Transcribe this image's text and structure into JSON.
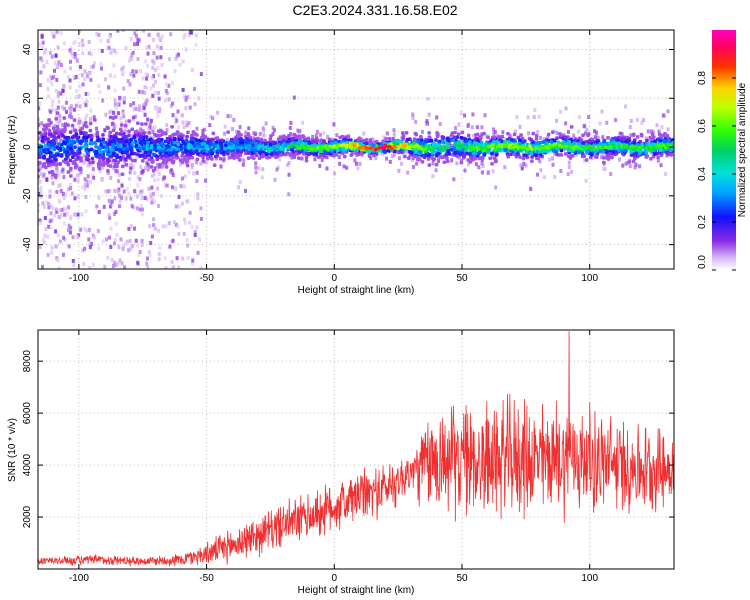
{
  "title": "C2E3.2024.331.16.58.E02",
  "chart_data": [
    {
      "type": "heatmap",
      "xlabel": "Height of straight line (km)",
      "ylabel": "Frequency (Hz)",
      "xlim": [
        -116,
        133
      ],
      "ylim": [
        -50,
        48
      ],
      "x_ticks": [
        -100,
        -50,
        0,
        50,
        100
      ],
      "y_ticks": [
        -40,
        -20,
        0,
        20,
        40
      ],
      "colorbar": {
        "label": "Normalized spectral amplitude",
        "range": [
          0,
          1
        ],
        "ticks": [
          0.0,
          0.2,
          0.4,
          0.6,
          0.8
        ],
        "tick_labels": [
          "0.0",
          "0.2",
          "0.4",
          "0.6",
          "0.8"
        ]
      },
      "band": {
        "center_hz": 0,
        "description_points": [
          {
            "x": -110,
            "halfwidth_hz": 7,
            "peak": 0.35
          },
          {
            "x": -80,
            "halfwidth_hz": 6,
            "peak": 0.35
          },
          {
            "x": -55,
            "halfwidth_hz": 4,
            "peak": 0.4
          },
          {
            "x": -30,
            "halfwidth_hz": 3,
            "peak": 0.45
          },
          {
            "x": 0,
            "halfwidth_hz": 2.5,
            "peak": 0.7
          },
          {
            "x": 20,
            "halfwidth_hz": 1.5,
            "peak": 1.0
          },
          {
            "x": 40,
            "halfwidth_hz": 4,
            "peak": 0.5
          },
          {
            "x": 70,
            "halfwidth_hz": 3,
            "peak": 0.7
          },
          {
            "x": 100,
            "halfwidth_hz": 3,
            "peak": 0.6
          },
          {
            "x": 130,
            "halfwidth_hz": 3,
            "peak": 0.6
          }
        ],
        "scatter_region_x": [
          -116,
          -52
        ]
      }
    },
    {
      "type": "line",
      "xlabel": "Height of straight line (km)",
      "ylabel": "SNR (10 * v/v)",
      "xlim": [
        -116,
        133
      ],
      "ylim": [
        0,
        9200
      ],
      "x_ticks": [
        -100,
        -50,
        0,
        50,
        100
      ],
      "y_ticks": [
        2000,
        4000,
        6000,
        8000
      ],
      "series": [
        {
          "color": "#f03030",
          "envelope": {
            "x": [
              -116,
              -90,
              -75,
              -60,
              -50,
              -40,
              -30,
              -20,
              -10,
              0,
              10,
              20,
              30,
              34,
              40,
              50,
              60,
              70,
              80,
              90,
              100,
              110,
              120,
              133
            ],
            "mean": [
              300,
              350,
              300,
              350,
              600,
              900,
              1300,
              1700,
              2000,
              2400,
              2800,
              3100,
              3700,
              3900,
              4200,
              4200,
              4200,
              4300,
              4200,
              4300,
              4200,
              4000,
              3900,
              3900
            ],
            "spread": [
              200,
              250,
              200,
              300,
              500,
              800,
              900,
              1000,
              1100,
              1200,
              1200,
              1200,
              1000,
              1800,
              2500,
              2500,
              2600,
              2700,
              2500,
              2600,
              2400,
              2200,
              2000,
              1800
            ]
          },
          "max": 9150
        }
      ]
    }
  ]
}
